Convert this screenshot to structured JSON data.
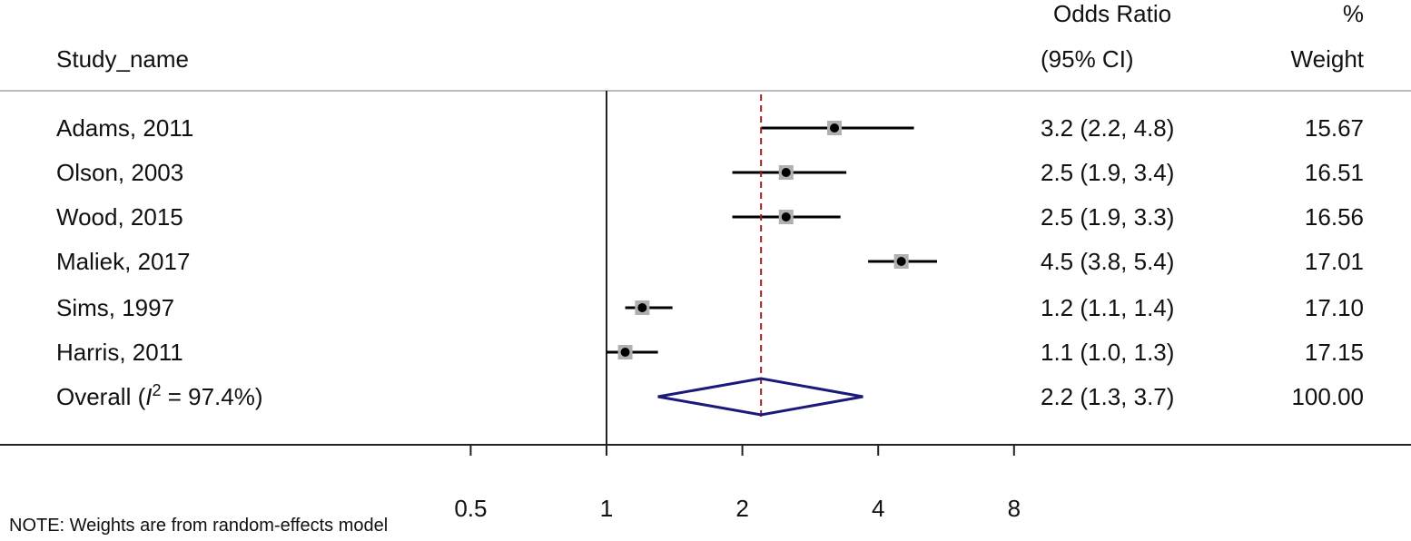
{
  "chart_data": {
    "type": "forest",
    "scale": "log",
    "header": {
      "study_col": "Study_name",
      "or_col_line1": "Odds Ratio",
      "or_col_line2": "(95% CI)",
      "weight_col_line1": "%",
      "weight_col_line2": "Weight"
    },
    "studies": [
      {
        "name": "Adams, 2011",
        "or": 3.2,
        "lo": 2.2,
        "hi": 4.8,
        "ci_text": "3.2 (2.2, 4.8)",
        "weight": "15.67"
      },
      {
        "name": "Olson, 2003",
        "or": 2.5,
        "lo": 1.9,
        "hi": 3.4,
        "ci_text": "2.5 (1.9, 3.4)",
        "weight": "16.51"
      },
      {
        "name": "Wood, 2015",
        "or": 2.5,
        "lo": 1.9,
        "hi": 3.3,
        "ci_text": "2.5 (1.9, 3.3)",
        "weight": "16.56"
      },
      {
        "name": "Maliek, 2017",
        "or": 4.5,
        "lo": 3.8,
        "hi": 5.4,
        "ci_text": "4.5 (3.8, 5.4)",
        "weight": "17.01"
      },
      {
        "name": "Sims, 1997",
        "or": 1.2,
        "lo": 1.1,
        "hi": 1.4,
        "ci_text": "1.2 (1.1, 1.4)",
        "weight": "17.10"
      },
      {
        "name": "Harris, 2011",
        "or": 1.1,
        "lo": 1.0,
        "hi": 1.3,
        "ci_text": "1.1 (1.0, 1.3)",
        "weight": "17.15"
      }
    ],
    "overall": {
      "label_prefix": "Overall (",
      "label_i": "I",
      "label_sup": "2",
      "label_suffix": " = 97.4%)",
      "or": 2.2,
      "lo": 1.3,
      "hi": 3.7,
      "ci_text": "2.2 (1.3, 3.7)",
      "weight": "100.00"
    },
    "null_line": 1,
    "x_ticks": [
      0.5,
      1,
      2,
      4,
      8
    ],
    "x_tick_labels": [
      "0.5",
      "1",
      "2",
      "4",
      "8"
    ],
    "note": "NOTE: Weights are from random-effects model",
    "colors": {
      "diamond": "#1a1a7a",
      "overall_line": "#a02020",
      "marker_box": "#b0b0b0",
      "ci": "#000000"
    }
  }
}
